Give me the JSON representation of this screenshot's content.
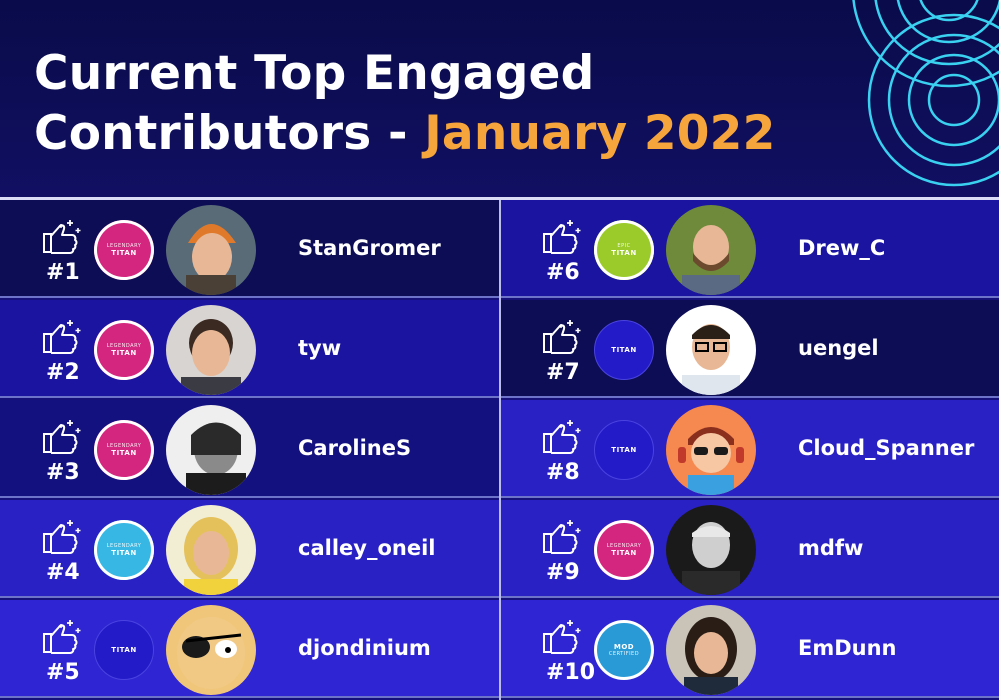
{
  "header": {
    "title_line1": "Current Top Engaged",
    "title_line2": "Contributors - ",
    "title_accent": "January 2022"
  },
  "colors": {
    "accent": "#f5a53c",
    "background": "#16107a",
    "header_bg": "#0a0b4a",
    "legendary_titan": "#d4267f",
    "titan_cyan": "#37b8e4",
    "titan_green": "#9acb2a",
    "titan_blue": "#231bc8",
    "mod_certified": "#2a9ad7"
  },
  "icons": {
    "rank": "thumbs-up-sparkle-icon",
    "decor": "concentric-rings"
  },
  "contributors": [
    {
      "rank": "#1",
      "name": "StanGromer",
      "badge": {
        "type": "pink",
        "line1": "LEGENDARY",
        "line2": "TITAN"
      },
      "avatar": "photo-orange-beanie"
    },
    {
      "rank": "#2",
      "name": "tyw",
      "badge": {
        "type": "pink",
        "line1": "LEGENDARY",
        "line2": "TITAN"
      },
      "avatar": "photo-smiling-man"
    },
    {
      "rank": "#3",
      "name": "CarolineS",
      "badge": {
        "type": "pink",
        "line1": "LEGENDARY",
        "line2": "TITAN"
      },
      "avatar": "photo-black-and-white"
    },
    {
      "rank": "#4",
      "name": "calley_oneil",
      "badge": {
        "type": "cyan",
        "line1": "LEGENDARY",
        "line2": "TITAN"
      },
      "avatar": "photo-blonde-woman"
    },
    {
      "rank": "#5",
      "name": "djondinium",
      "badge": {
        "type": "blue",
        "line1": "",
        "line2": "TITAN"
      },
      "avatar": "cartoon-eyepatch"
    },
    {
      "rank": "#6",
      "name": "Drew_C",
      "badge": {
        "type": "green",
        "line1": "EPIC",
        "line2": "TITAN"
      },
      "avatar": "photo-bearded-man"
    },
    {
      "rank": "#7",
      "name": "uengel",
      "badge": {
        "type": "blue",
        "line1": "",
        "line2": "TITAN"
      },
      "avatar": "photo-glasses-man"
    },
    {
      "rank": "#8",
      "name": "Cloud_Spanner",
      "badge": {
        "type": "blue",
        "line1": "",
        "line2": "TITAN"
      },
      "avatar": "cartoon-sunglasses"
    },
    {
      "rank": "#9",
      "name": "mdfw",
      "badge": {
        "type": "pink",
        "line1": "LEGENDARY",
        "line2": "TITAN"
      },
      "avatar": "photo-bw-man"
    },
    {
      "rank": "#10",
      "name": "EmDunn",
      "badge": {
        "type": "mod",
        "line1": "MOD",
        "line2": "CERTIFIED"
      },
      "avatar": "photo-dark-hair-woman"
    }
  ]
}
